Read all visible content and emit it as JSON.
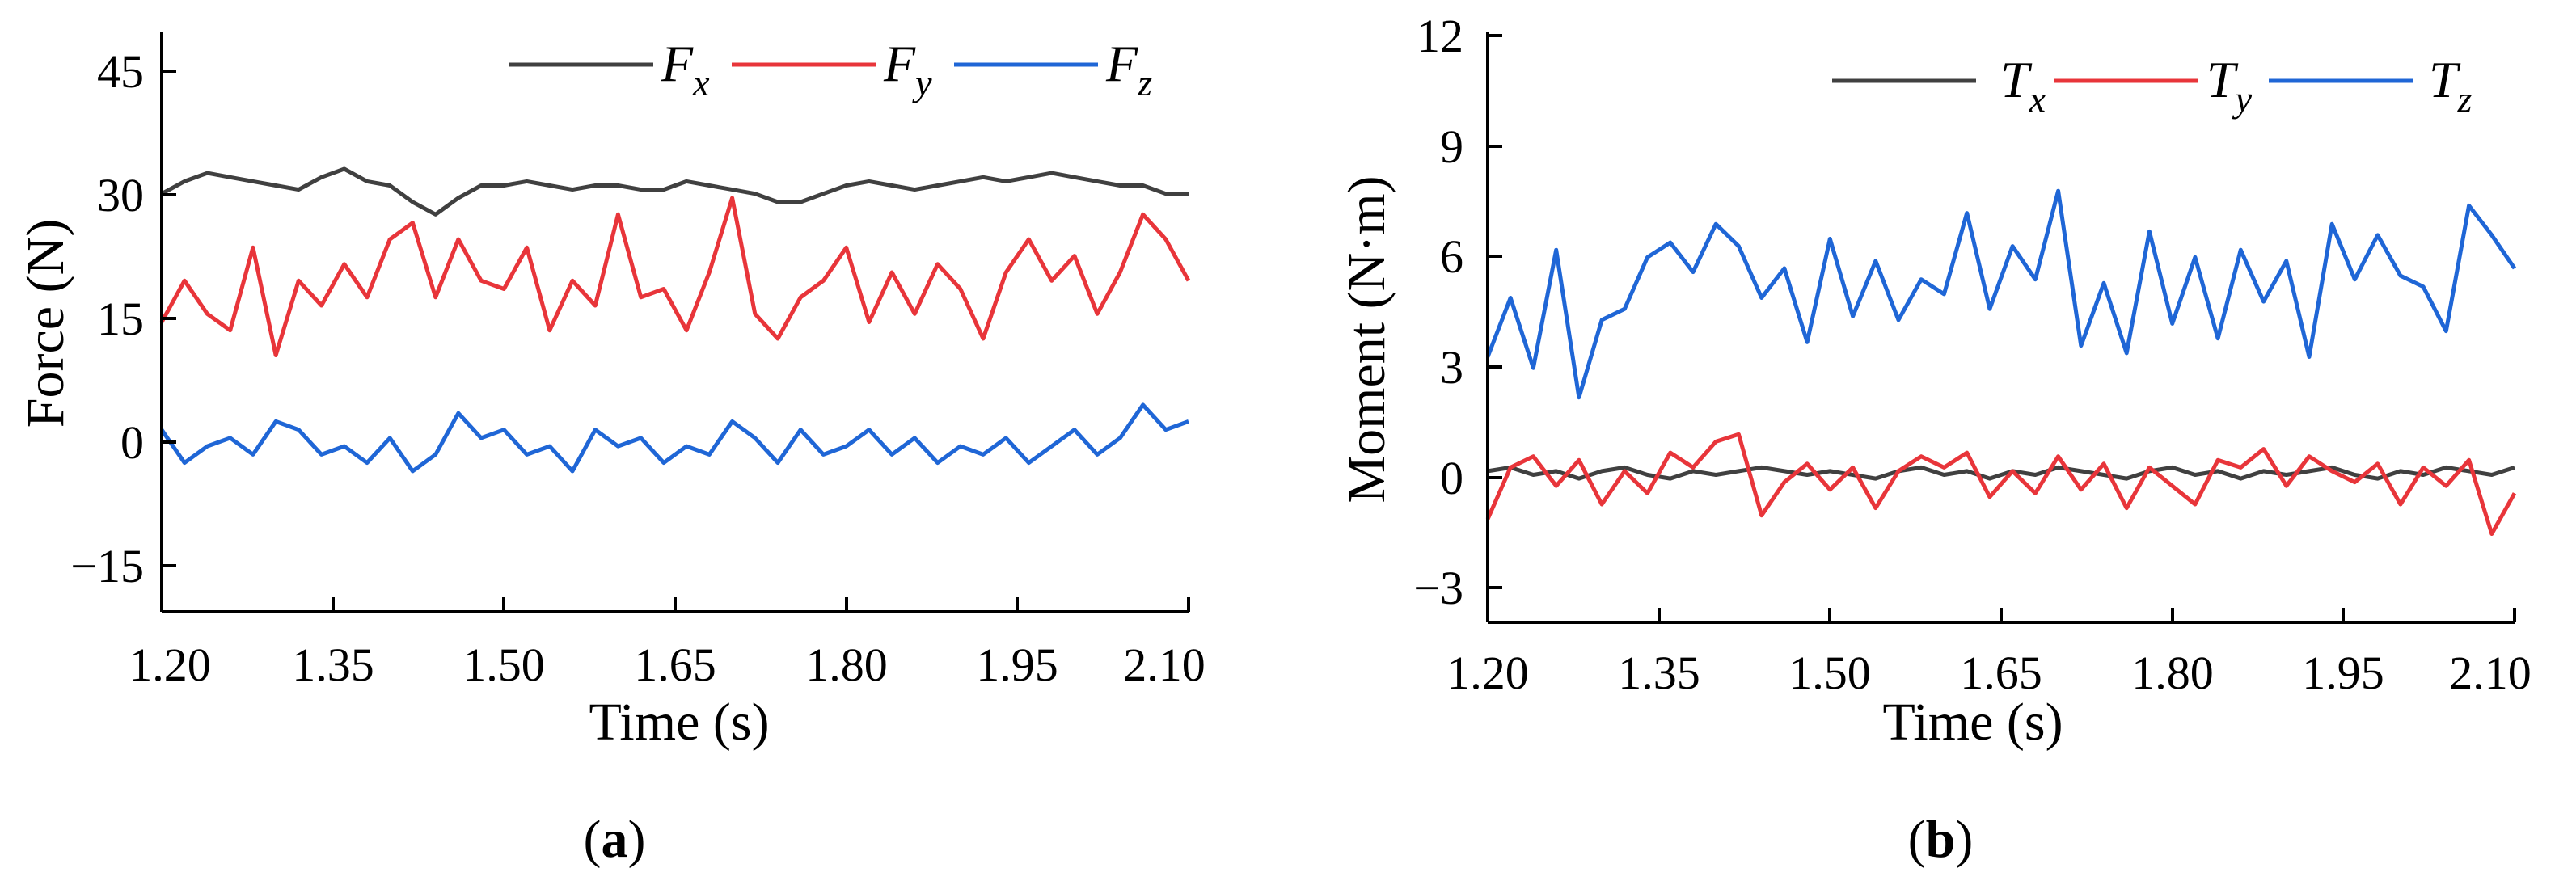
{
  "chart_data": [
    {
      "type": "line",
      "panel_label": {
        "open": "(",
        "letter": "a",
        "close": ")"
      },
      "xlabel": "Time (s)",
      "ylabel": "Force (N)",
      "xlim": [
        1.2,
        2.1
      ],
      "ylim": [
        -20,
        50
      ],
      "xticks": [
        "1.20",
        "1.35",
        "1.50",
        "1.65",
        "1.80",
        "1.95",
        "2.10"
      ],
      "yticks": [
        "−15",
        "0",
        "15",
        "30",
        "45"
      ],
      "legend_position": "top-right",
      "series": [
        {
          "name": "F",
          "sub": "x",
          "color": "#404040",
          "x": [
            1.2,
            1.22,
            1.24,
            1.26,
            1.28,
            1.3,
            1.32,
            1.34,
            1.36,
            1.38,
            1.4,
            1.42,
            1.44,
            1.46,
            1.48,
            1.5,
            1.52,
            1.54,
            1.56,
            1.58,
            1.6,
            1.62,
            1.64,
            1.66,
            1.68,
            1.7,
            1.72,
            1.74,
            1.76,
            1.78,
            1.8,
            1.82,
            1.84,
            1.86,
            1.88,
            1.9,
            1.92,
            1.94,
            1.96,
            1.98,
            2.0,
            2.02,
            2.04,
            2.06,
            2.08,
            2.1
          ],
          "y": [
            30.5,
            32,
            33,
            32.5,
            32,
            31.5,
            31,
            32.5,
            33.5,
            32,
            31.5,
            29.5,
            28,
            30,
            31.5,
            31.5,
            32,
            31.5,
            31,
            31.5,
            31.5,
            31,
            31,
            32,
            31.5,
            31,
            30.5,
            29.5,
            29.5,
            30.5,
            31.5,
            32,
            31.5,
            31,
            31.5,
            32,
            32.5,
            32,
            32.5,
            33,
            32.5,
            32,
            31.5,
            31.5,
            30.5,
            30.5
          ]
        },
        {
          "name": "F",
          "sub": "y",
          "color": "#e8353a",
          "x": [
            1.2,
            1.22,
            1.24,
            1.26,
            1.28,
            1.3,
            1.32,
            1.34,
            1.36,
            1.38,
            1.4,
            1.42,
            1.44,
            1.46,
            1.48,
            1.5,
            1.52,
            1.54,
            1.56,
            1.58,
            1.6,
            1.62,
            1.64,
            1.66,
            1.68,
            1.7,
            1.72,
            1.74,
            1.76,
            1.78,
            1.8,
            1.82,
            1.84,
            1.86,
            1.88,
            1.9,
            1.92,
            1.94,
            1.96,
            1.98,
            2.0,
            2.02,
            2.04,
            2.06,
            2.08,
            2.1
          ],
          "y": [
            15,
            20,
            16,
            14,
            24,
            11,
            20,
            17,
            22,
            18,
            25,
            27,
            18,
            25,
            20,
            19,
            24,
            14,
            20,
            17,
            28,
            18,
            19,
            14,
            21,
            30,
            16,
            13,
            18,
            20,
            24,
            15,
            21,
            16,
            22,
            19,
            13,
            21,
            25,
            20,
            23,
            16,
            21,
            28,
            25,
            20
          ]
        },
        {
          "name": "F",
          "sub": "z",
          "color": "#1f66d6",
          "x": [
            1.2,
            1.22,
            1.24,
            1.26,
            1.28,
            1.3,
            1.32,
            1.34,
            1.36,
            1.38,
            1.4,
            1.42,
            1.44,
            1.46,
            1.48,
            1.5,
            1.52,
            1.54,
            1.56,
            1.58,
            1.6,
            1.62,
            1.64,
            1.66,
            1.68,
            1.7,
            1.72,
            1.74,
            1.76,
            1.78,
            1.8,
            1.82,
            1.84,
            1.86,
            1.88,
            1.9,
            1.92,
            1.94,
            1.96,
            1.98,
            2.0,
            2.02,
            2.04,
            2.06,
            2.08,
            2.1
          ],
          "y": [
            2,
            -2,
            0,
            1,
            -1,
            3,
            2,
            -1,
            0,
            -2,
            1,
            -3,
            -1,
            4,
            1,
            2,
            -1,
            0,
            -3,
            2,
            0,
            1,
            -2,
            0,
            -1,
            3,
            1,
            -2,
            2,
            -1,
            0,
            2,
            -1,
            1,
            -2,
            0,
            -1,
            1,
            -2,
            0,
            2,
            -1,
            1,
            5,
            2,
            3
          ]
        }
      ]
    },
    {
      "type": "line",
      "panel_label": {
        "open": "(",
        "letter": "b",
        "close": ")"
      },
      "xlabel": "Time (s)",
      "ylabel": "Moment (N·m)",
      "xlim": [
        1.2,
        2.1
      ],
      "ylim": [
        -4,
        12
      ],
      "xticks": [
        "1.20",
        "1.35",
        "1.50",
        "1.65",
        "1.80",
        "1.95",
        "2.10"
      ],
      "yticks": [
        "−3",
        "0",
        "3",
        "6",
        "9",
        "12"
      ],
      "legend_position": "top-right",
      "series": [
        {
          "name": "T",
          "sub": "x",
          "color": "#404040",
          "x": [
            1.2,
            1.22,
            1.24,
            1.26,
            1.28,
            1.3,
            1.32,
            1.34,
            1.36,
            1.38,
            1.4,
            1.42,
            1.44,
            1.46,
            1.48,
            1.5,
            1.52,
            1.54,
            1.56,
            1.58,
            1.6,
            1.62,
            1.64,
            1.66,
            1.68,
            1.7,
            1.72,
            1.74,
            1.76,
            1.78,
            1.8,
            1.82,
            1.84,
            1.86,
            1.88,
            1.9,
            1.92,
            1.94,
            1.96,
            1.98,
            2.0,
            2.02,
            2.04,
            2.06,
            2.08,
            2.1
          ],
          "y": [
            0.1,
            0.2,
            0,
            0.1,
            -0.1,
            0.1,
            0.2,
            0,
            -0.1,
            0.1,
            0,
            0.1,
            0.2,
            0.1,
            0,
            0.1,
            0,
            -0.1,
            0.1,
            0.2,
            0,
            0.1,
            -0.1,
            0.1,
            0,
            0.2,
            0.1,
            0,
            -0.1,
            0.1,
            0.2,
            0,
            0.1,
            -0.1,
            0.1,
            0,
            0.1,
            0.2,
            0,
            -0.1,
            0.1,
            0,
            0.2,
            0.1,
            0,
            0.2
          ]
        },
        {
          "name": "T",
          "sub": "y",
          "color": "#e8353a",
          "x": [
            1.2,
            1.22,
            1.24,
            1.26,
            1.28,
            1.3,
            1.32,
            1.34,
            1.36,
            1.38,
            1.4,
            1.42,
            1.44,
            1.46,
            1.48,
            1.5,
            1.52,
            1.54,
            1.56,
            1.58,
            1.6,
            1.62,
            1.64,
            1.66,
            1.68,
            1.7,
            1.72,
            1.74,
            1.76,
            1.78,
            1.8,
            1.82,
            1.84,
            1.86,
            1.88,
            1.9,
            1.92,
            1.94,
            1.96,
            1.98,
            2.0,
            2.02,
            2.04,
            2.06,
            2.08,
            2.1
          ],
          "y": [
            -1.2,
            0.2,
            0.5,
            -0.3,
            0.4,
            -0.8,
            0.1,
            -0.5,
            0.6,
            0.2,
            0.9,
            1.1,
            -1.1,
            -0.2,
            0.3,
            -0.4,
            0.2,
            -0.9,
            0.1,
            0.5,
            0.2,
            0.6,
            -0.6,
            0.1,
            -0.5,
            0.5,
            -0.4,
            0.3,
            -0.9,
            0.2,
            -0.3,
            -0.8,
            0.4,
            0.2,
            0.7,
            -0.3,
            0.5,
            0.1,
            -0.2,
            0.3,
            -0.8,
            0.2,
            -0.3,
            0.4,
            -1.6,
            -0.5
          ]
        },
        {
          "name": "T",
          "sub": "z",
          "color": "#1f66d6",
          "x": [
            1.2,
            1.22,
            1.24,
            1.26,
            1.28,
            1.3,
            1.32,
            1.34,
            1.36,
            1.38,
            1.4,
            1.42,
            1.44,
            1.46,
            1.48,
            1.5,
            1.52,
            1.54,
            1.56,
            1.58,
            1.6,
            1.62,
            1.64,
            1.66,
            1.68,
            1.7,
            1.72,
            1.74,
            1.76,
            1.78,
            1.8,
            1.82,
            1.84,
            1.86,
            1.88,
            1.9,
            1.92,
            1.94,
            1.96,
            1.98,
            2.0,
            2.02,
            2.04,
            2.06,
            2.08,
            2.1
          ],
          "y": [
            3.2,
            4.8,
            2.9,
            6.1,
            2.1,
            4.2,
            4.5,
            5.9,
            6.3,
            5.5,
            6.8,
            6.2,
            4.8,
            5.6,
            3.6,
            6.4,
            4.3,
            5.8,
            4.2,
            5.3,
            4.9,
            7.1,
            4.5,
            6.2,
            5.3,
            7.7,
            3.5,
            5.2,
            3.3,
            6.6,
            4.1,
            5.9,
            3.7,
            6.1,
            4.7,
            5.8,
            3.2,
            6.8,
            5.3,
            6.5,
            5.4,
            5.1,
            3.9,
            7.3,
            6.5,
            5.6
          ]
        }
      ]
    }
  ]
}
